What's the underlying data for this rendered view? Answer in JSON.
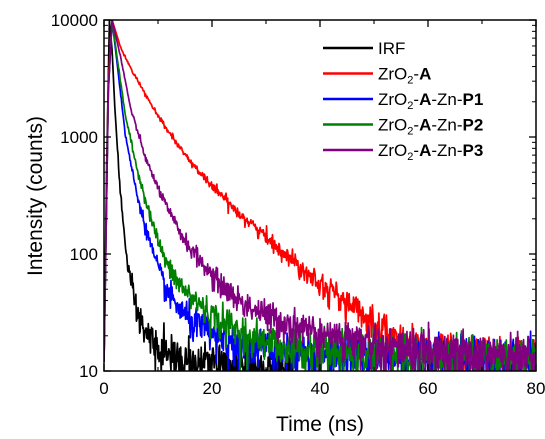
{
  "chart_data": {
    "type": "line",
    "xlabel": "Time (ns)",
    "ylabel": "Intensity (counts)",
    "xlim": [
      0,
      80
    ],
    "ylim": [
      10,
      10000
    ],
    "yscale": "log",
    "grid": false,
    "legend_position": "top-right",
    "x_ticks": [
      0,
      20,
      40,
      60,
      80
    ],
    "x_tick_labels": [
      "0",
      "20",
      "40",
      "60",
      "80"
    ],
    "y_ticks": [
      10,
      100,
      1000,
      10000
    ],
    "y_tick_labels": [
      "10",
      "100",
      "1000",
      "10000"
    ],
    "series": [
      {
        "legend": [
          "IRF"
        ],
        "color": "#000000",
        "peak_time": 1.0,
        "x": [
          0.0,
          0.5,
          1.0,
          1.5,
          2.0,
          3.0,
          4.0,
          5.0,
          6.0,
          8.0,
          10.0,
          12.0,
          15.0,
          20.0,
          25.0,
          30.0,
          35.0
        ],
        "y": [
          12,
          600,
          10000,
          5500,
          1800,
          350,
          110,
          55,
          32,
          20,
          16,
          14,
          12,
          11,
          10.5,
          10.5,
          10
        ]
      },
      {
        "legend": [
          "ZrO",
          "2",
          "-",
          "A"
        ],
        "color": "#ff0000",
        "peak_time": 1.5,
        "x": [
          0.0,
          0.8,
          1.5,
          3.0,
          5.0,
          10.0,
          15.0,
          20.0,
          25.0,
          30.0,
          35.0,
          40.0,
          45.0,
          50.0,
          52.0,
          55.0,
          60.0,
          70.0,
          80.0
        ],
        "y": [
          12,
          3000,
          10000,
          6000,
          3800,
          1500,
          700,
          380,
          225,
          140,
          88,
          58,
          38,
          26,
          24,
          17,
          15,
          14,
          13
        ]
      },
      {
        "legend": [
          "ZrO",
          "2",
          "-",
          "A",
          "-Zn-",
          "P1"
        ],
        "color": "#0000ff",
        "peak_time": 1.5,
        "x": [
          0.0,
          0.8,
          1.5,
          2.5,
          4.0,
          6.0,
          8.0,
          10.0,
          12.0,
          15.0,
          20.0,
          25.0,
          30.0,
          40.0,
          50.0,
          60.0,
          80.0
        ],
        "y": [
          12,
          2500,
          10000,
          4000,
          1000,
          340,
          150,
          75,
          45,
          30,
          20,
          17,
          15,
          14,
          14,
          13,
          13
        ]
      },
      {
        "legend": [
          "ZrO",
          "2",
          "-",
          "A",
          "-Zn-",
          "P2"
        ],
        "color": "#008000",
        "peak_time": 1.5,
        "x": [
          0.0,
          0.8,
          1.5,
          2.5,
          4.0,
          6.0,
          8.0,
          10.0,
          12.0,
          15.0,
          20.0,
          25.0,
          30.0,
          40.0,
          50.0,
          60.0,
          80.0
        ],
        "y": [
          12,
          2500,
          10000,
          4500,
          1500,
          560,
          260,
          130,
          75,
          48,
          30,
          22,
          18,
          15,
          14,
          14,
          13
        ]
      },
      {
        "legend": [
          "ZrO",
          "2",
          "-",
          "A",
          "-Zn-",
          "P3"
        ],
        "color": "#800080",
        "peak_time": 1.5,
        "x": [
          0.0,
          0.8,
          1.5,
          3.0,
          5.0,
          8.0,
          10.0,
          12.0,
          15.0,
          20.0,
          25.0,
          30.0,
          35.0,
          40.0,
          50.0,
          60.0,
          70.0,
          80.0
        ],
        "y": [
          12,
          2500,
          10000,
          5000,
          1700,
          600,
          370,
          230,
          130,
          65,
          40,
          30,
          25,
          21,
          17,
          15,
          14,
          13
        ]
      }
    ]
  }
}
